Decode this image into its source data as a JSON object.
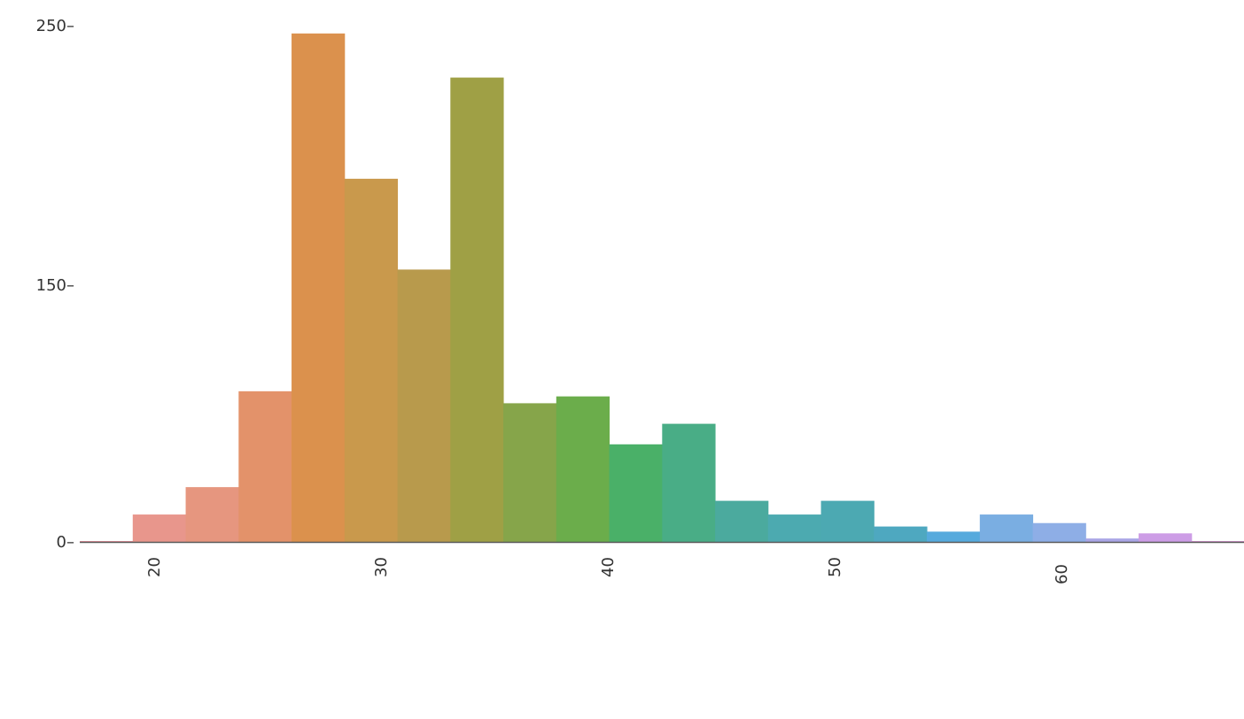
{
  "chart_data": {
    "type": "bar",
    "subtype": "histogram",
    "title": "",
    "xlabel": "",
    "ylabel": "",
    "x_ticks": [
      20,
      30,
      40,
      50,
      60
    ],
    "y_ticks": [
      0,
      150,
      250
    ],
    "y_tick_labels": [
      "0–",
      "150–",
      "250–"
    ],
    "x_tick_labels": [
      "20",
      "30",
      "40",
      "50",
      "60"
    ],
    "bin_start": 16.76,
    "bin_width": 2.334,
    "values": [
      0,
      16,
      32,
      88,
      247,
      191,
      156,
      230,
      81,
      85,
      57,
      69,
      24,
      16,
      24,
      9,
      6,
      16,
      11,
      2,
      5,
      0
    ],
    "colors": [
      "#e58f9a",
      "#e8968c",
      "#e6967f",
      "#e3926a",
      "#db914d",
      "#c9994c",
      "#b89a4c",
      "#9fa045",
      "#86a54a",
      "#6bad4b",
      "#4ab068",
      "#49ad86",
      "#4baa9e",
      "#4caab0",
      "#4ca9b2",
      "#4ea8c0",
      "#56aadd",
      "#7aaee2",
      "#8eaee6",
      "#aaa6e6",
      "#cd9de6",
      "#d697cf"
    ],
    "baseline_color": "#5a5a5a",
    "grid": false,
    "legend": "none"
  }
}
